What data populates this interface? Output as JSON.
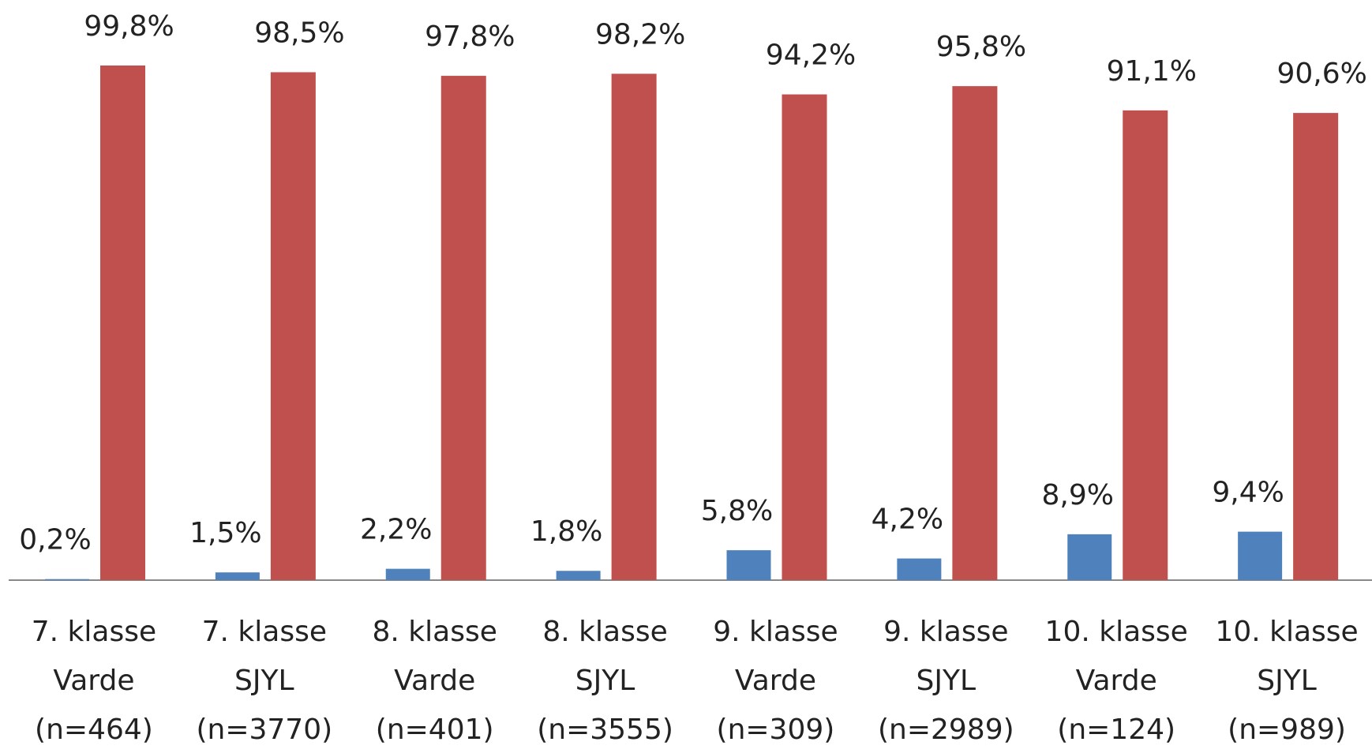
{
  "chart_data": {
    "type": "bar",
    "categories": [
      [
        "7. klasse",
        "Varde",
        "(n=464)"
      ],
      [
        "7. klasse",
        "SJYL",
        "(n=3770)"
      ],
      [
        "8. klasse",
        "Varde",
        "(n=401)"
      ],
      [
        "8. klasse",
        "SJYL",
        "(n=3555)"
      ],
      [
        "9. klasse",
        "Varde",
        "(n=309)"
      ],
      [
        "9. klasse",
        "SJYL",
        "(n=2989)"
      ],
      [
        "10. klasse",
        "Varde",
        "(n=124)"
      ],
      [
        "10. klasse",
        "SJYL",
        "(n=989)"
      ]
    ],
    "series": [
      {
        "color": "#4f81bd",
        "values": [
          0.2,
          1.5,
          2.2,
          1.8,
          5.8,
          4.2,
          8.9,
          9.4
        ],
        "value_labels": [
          "0,2%",
          "1,5%",
          "2,2%",
          "1,8%",
          "5,8%",
          "4,2%",
          "8,9%",
          "9,4%"
        ]
      },
      {
        "color": "#c0504d",
        "values": [
          99.8,
          98.5,
          97.8,
          98.2,
          94.2,
          95.8,
          91.1,
          90.6
        ],
        "value_labels": [
          "99,8%",
          "98,5%",
          "97,8%",
          "98,2%",
          "94,2%",
          "95,8%",
          "91,1%",
          "90,6%"
        ]
      }
    ]
  }
}
